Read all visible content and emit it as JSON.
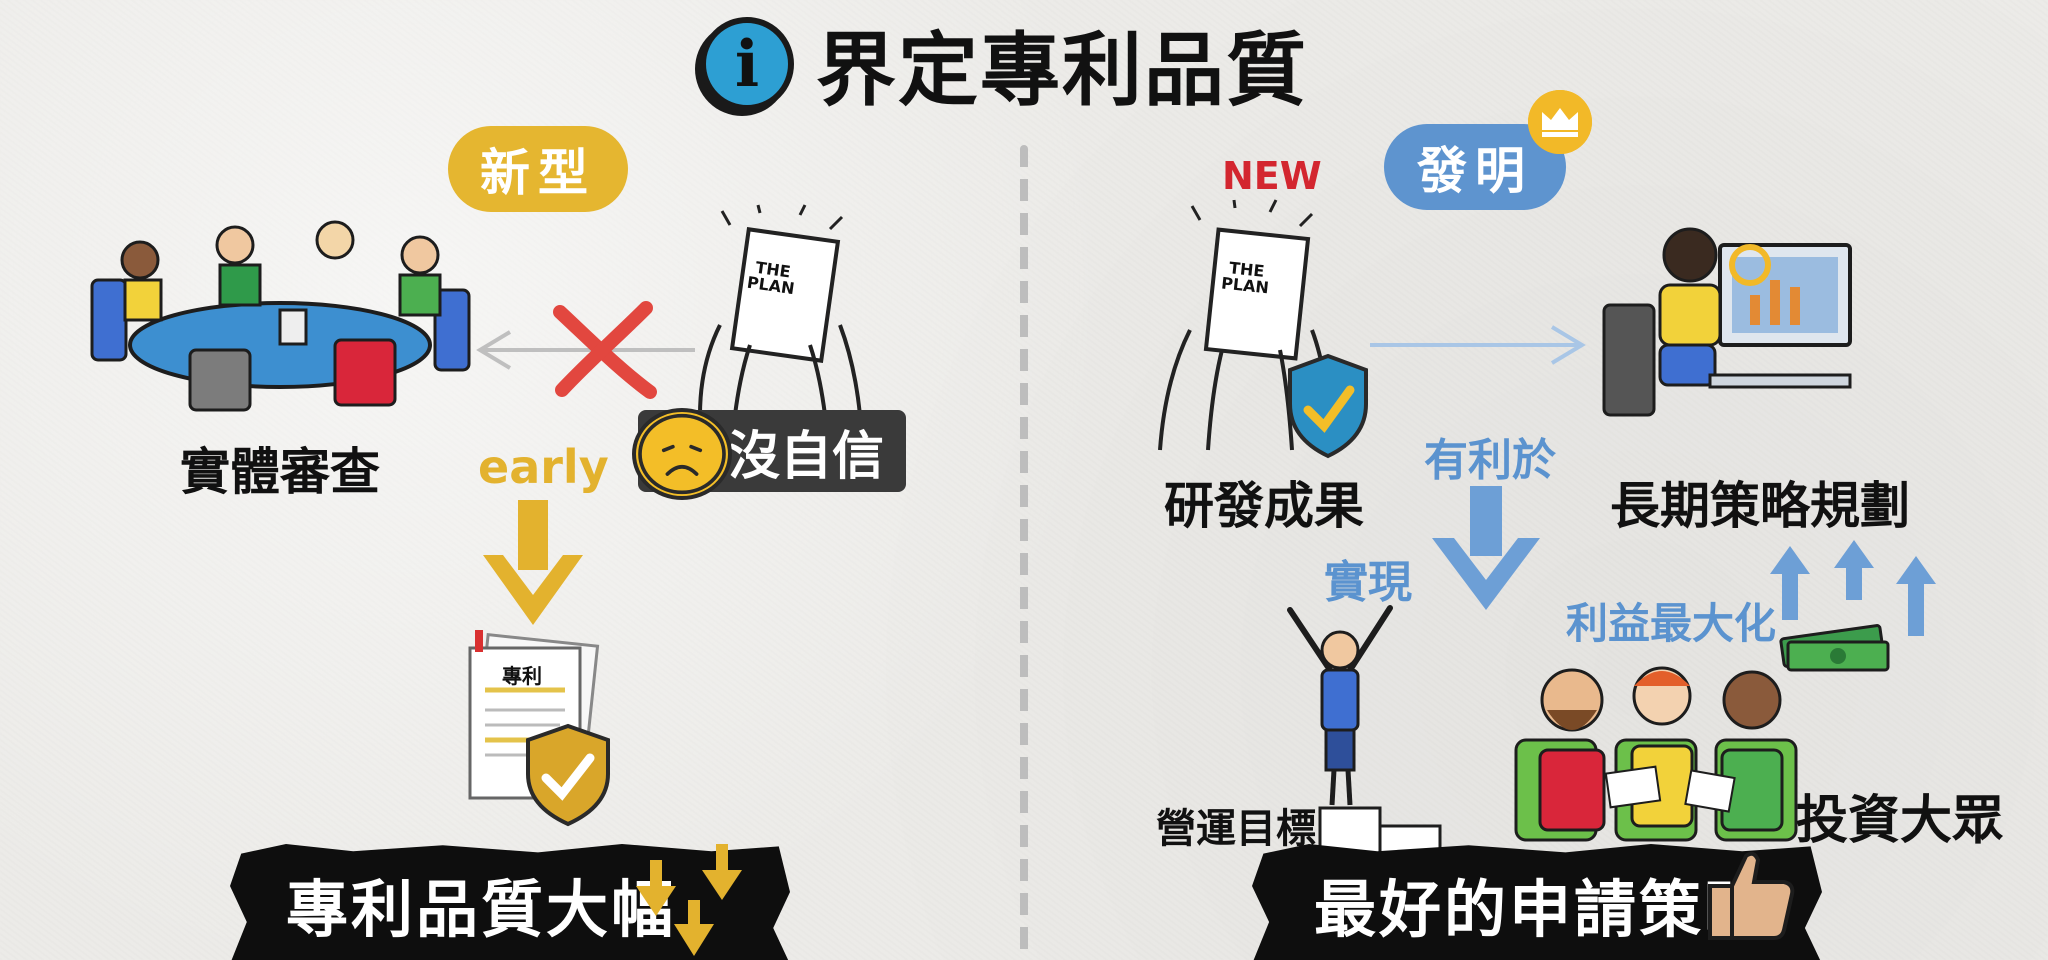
{
  "title": "界定專利品質",
  "icons": {
    "title_icon": "info-icon",
    "title_icon_glyph": "i"
  },
  "left": {
    "pill": "新型",
    "label_substantive": "實體審查",
    "early": "early",
    "no_confidence": "沒自信",
    "plan_book": {
      "line1": "THE",
      "line2": "PLAN"
    },
    "patent_doc_title": "專利",
    "banner": "專利品質大幅"
  },
  "right": {
    "pill": "發明",
    "new_tag": "NEW",
    "plan_book": {
      "line1": "THE",
      "line2": "PLAN"
    },
    "label_rd": "研發成果",
    "label_long_term": "長期策略規劃",
    "label_beneficial": "有利於",
    "label_realize": "實現",
    "label_maximize": "利益最大化",
    "label_ops_target": "營運目標",
    "label_investors": "投資大眾",
    "banner": "最好的申請策略"
  },
  "colors": {
    "gold": "#e5b630",
    "blue": "#5e94cf",
    "red_x": "#e2473f",
    "shield_blue": "#2b8fc3",
    "shield_gold": "#d9a62a",
    "banner_bg": "#0e0e0e"
  }
}
